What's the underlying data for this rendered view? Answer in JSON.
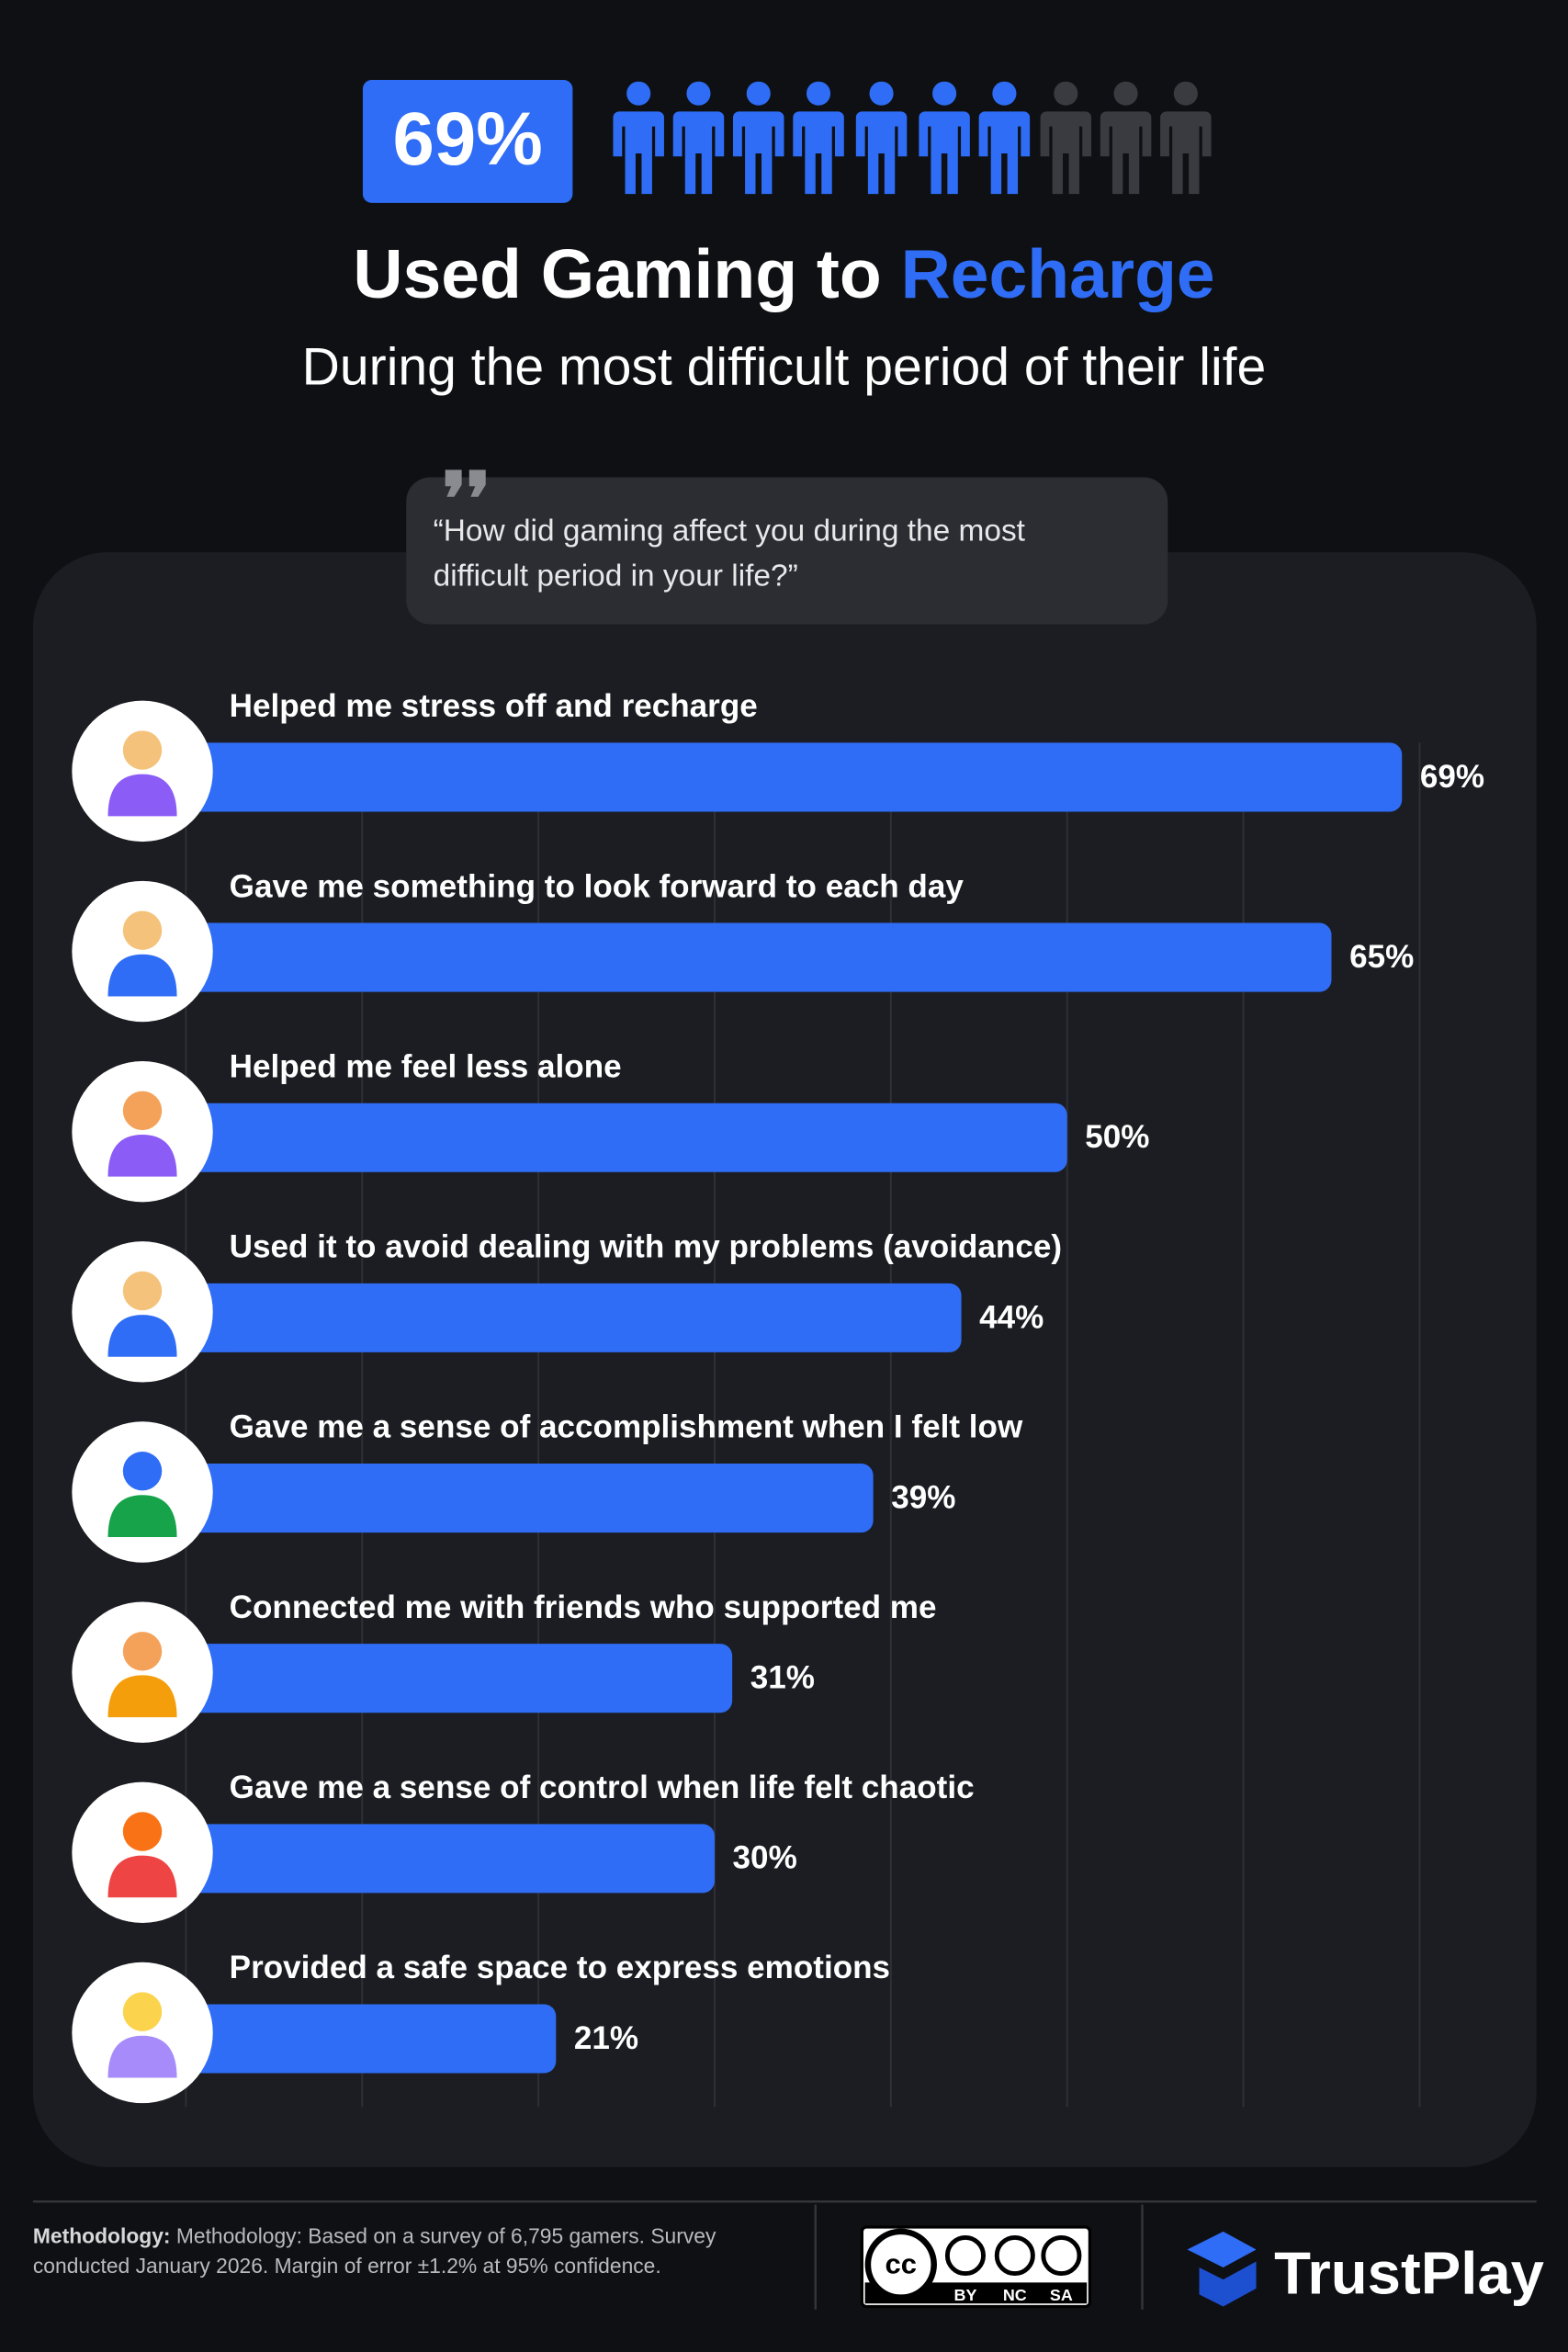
{
  "header": {
    "badge": "69%",
    "title": "Used Gaming to",
    "title_highlight": "Recharge",
    "subtitle": "During the most difficult period of their life"
  },
  "question": [
    "“How did gaming affect you during the most",
    "difficult period in your life?”"
  ],
  "chart_data": {
    "type": "hbar",
    "categories": [
      "Helped me stress off and recharge",
      "Gave me something to look forward to each day",
      "Helped me feel less alone",
      "Used it to avoid dealing with my problems (avoidance)",
      "Gave me a sense of accomplishment when I felt low",
      "Connected me with friends who supported me",
      "Gave me a sense of control when life felt chaotic",
      "Provided a safe space to express emotions"
    ],
    "values": [
      69,
      65,
      50,
      44,
      39,
      31,
      30,
      21
    ],
    "value_labels": [
      "69%",
      "65%",
      "50%",
      "44%",
      "39%",
      "31%",
      "30%",
      "21%"
    ],
    "color": "#2f6df6",
    "xlim": [
      0,
      70
    ],
    "xticks": [
      0,
      10,
      20,
      30,
      40,
      50,
      60,
      70
    ],
    "grid": true
  },
  "footer": {
    "methodology_label": "Methodology:",
    "methodology": [
      "Methodology: Based on a survey of 6,795 gamers. Survey",
      "conducted January 2026. Margin of error ±1.2% at 95% confidence."
    ],
    "license": [
      "BY",
      "NC",
      "SA"
    ],
    "brand": "TrustPlay"
  }
}
